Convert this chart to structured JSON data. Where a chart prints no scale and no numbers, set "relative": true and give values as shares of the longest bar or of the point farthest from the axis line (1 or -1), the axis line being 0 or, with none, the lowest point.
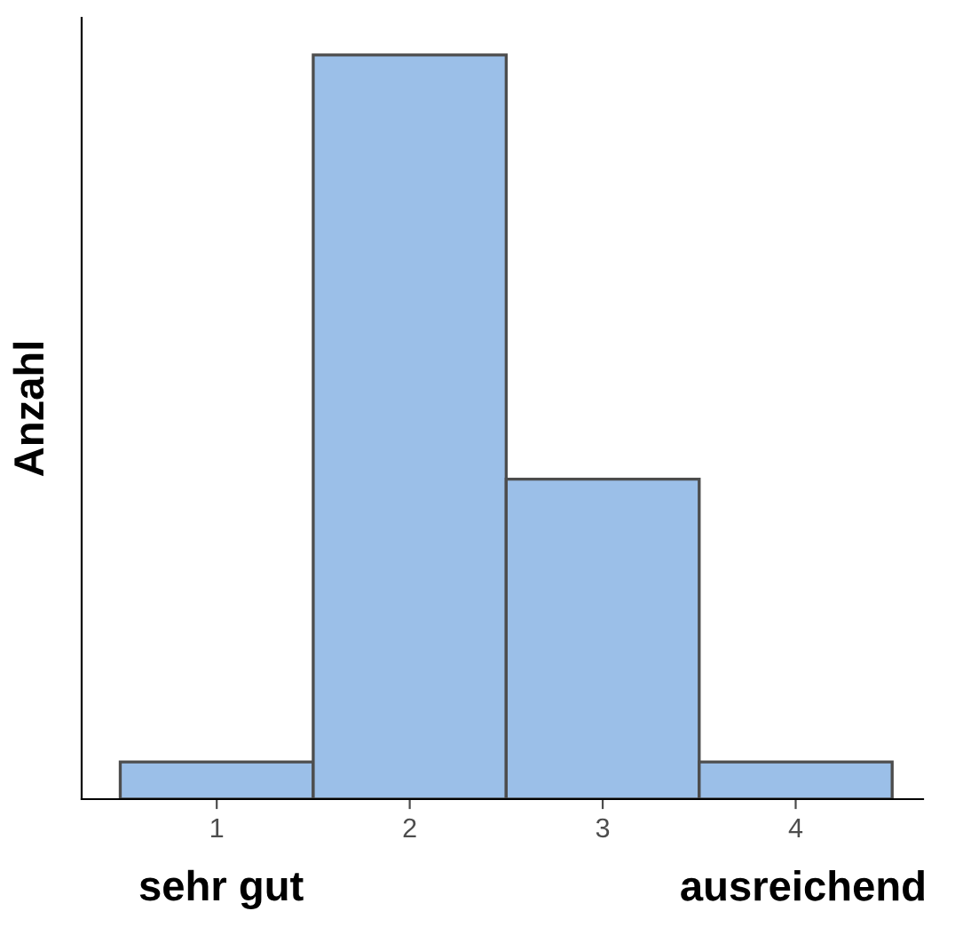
{
  "chart_data": {
    "type": "bar",
    "ylabel": "Anzahl",
    "categories": [
      "1",
      "2",
      "3",
      "4"
    ],
    "values": [
      0.05,
      1,
      0.43,
      0.05
    ],
    "color": "#9bbfe8",
    "relative": true,
    "annotations": [
      "sehr gut",
      "ausreichend"
    ]
  }
}
